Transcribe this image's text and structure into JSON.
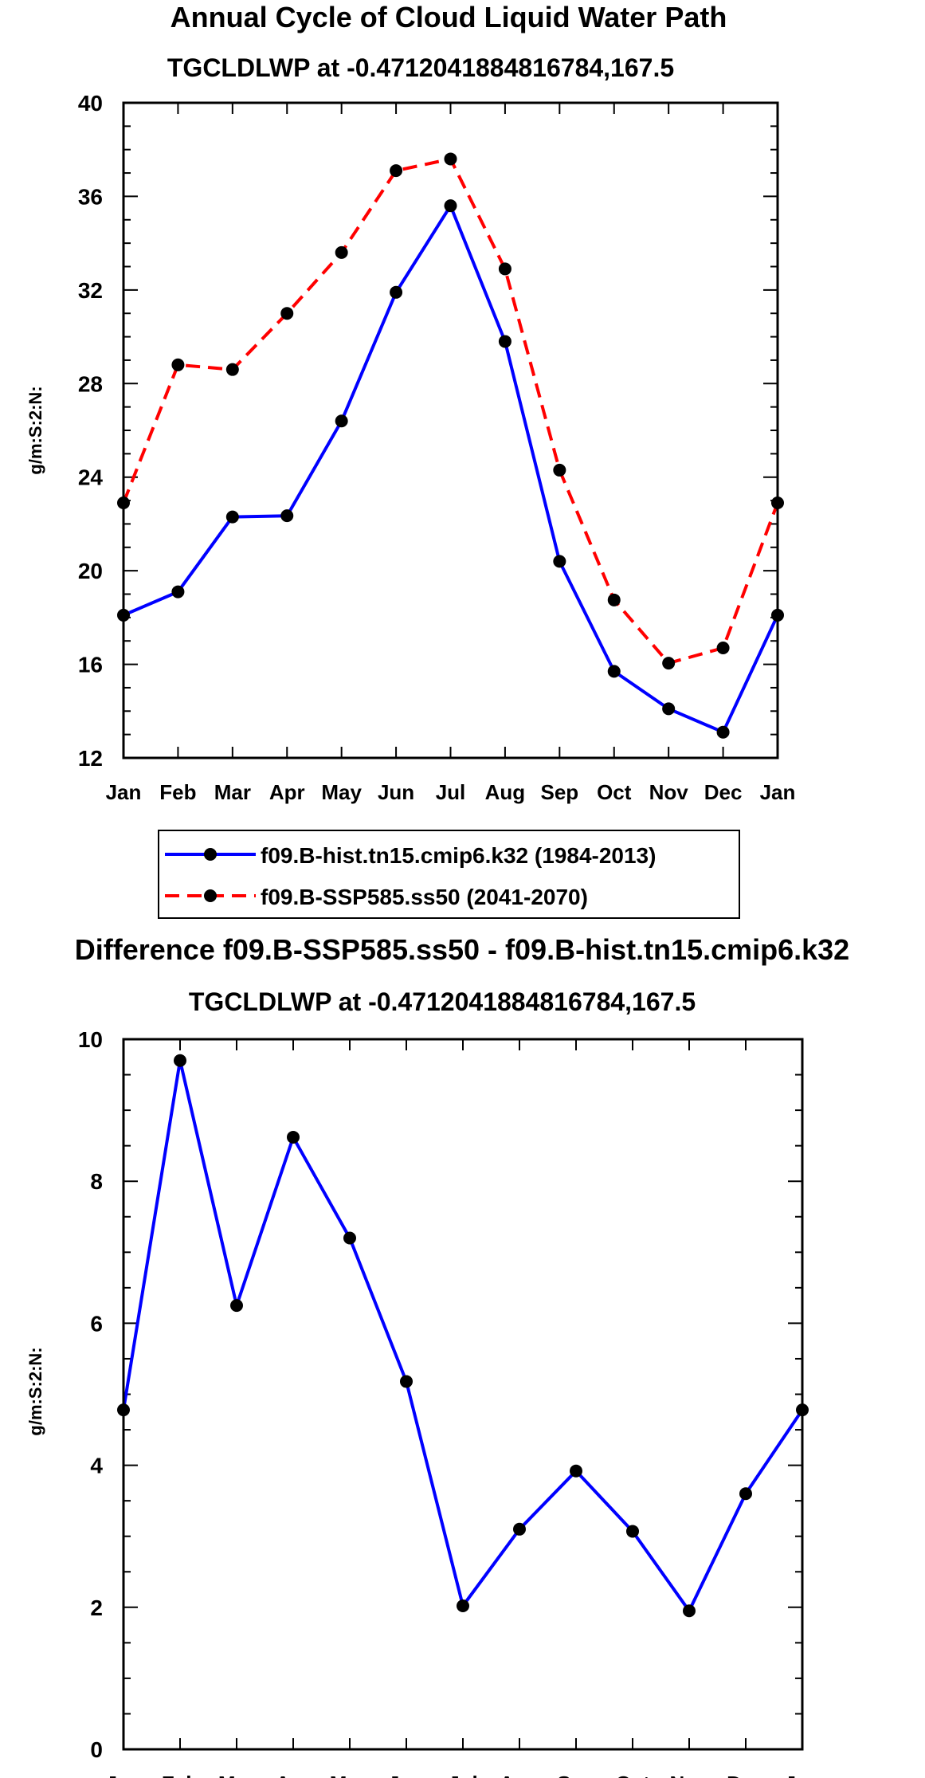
{
  "chart_data": [
    {
      "type": "line",
      "title": "Annual Cycle of Cloud Liquid Water Path",
      "subtitle": "TGCLDLWP at -0.4712041884816784,167.5",
      "xlabel": "",
      "ylabel": "g/m:S:2:N:",
      "categories": [
        "Jan",
        "Feb",
        "Mar",
        "Apr",
        "May",
        "Jun",
        "Jul",
        "Aug",
        "Sep",
        "Oct",
        "Nov",
        "Dec",
        "Jan"
      ],
      "ylim": [
        12,
        40
      ],
      "yticks": [
        12,
        16,
        20,
        24,
        28,
        32,
        36,
        40
      ],
      "ytick_labels": [
        "12",
        "16",
        "20",
        "24",
        "28",
        "32",
        "36",
        "40"
      ],
      "series": [
        {
          "name": "f09.B-hist.tn15.cmip6.k32 (1984-2013)",
          "color": "#0000ff",
          "dash": "solid",
          "values": [
            18.1,
            19.1,
            22.3,
            22.35,
            26.4,
            31.9,
            35.6,
            29.8,
            20.4,
            15.7,
            14.1,
            13.1,
            18.1
          ]
        },
        {
          "name": "f09.B-SSP585.ss50 (2041-2070)",
          "color": "#ff0000",
          "dash": "dashed",
          "values": [
            22.9,
            28.8,
            28.6,
            31.0,
            33.6,
            37.1,
            37.6,
            32.9,
            24.3,
            18.75,
            16.05,
            16.7,
            22.9
          ]
        }
      ],
      "legend": "below"
    },
    {
      "type": "line",
      "title": "Difference f09.B-SSP585.ss50 - f09.B-hist.tn15.cmip6.k32",
      "subtitle": "TGCLDLWP at -0.4712041884816784,167.5",
      "xlabel": "",
      "ylabel": "g/m:S:2:N:",
      "categories": [
        "Jan",
        "Feb",
        "Mar",
        "Apr",
        "May",
        "Jun",
        "Jul",
        "Aug",
        "Sep",
        "Oct",
        "Nov",
        "Dec",
        "Jan"
      ],
      "ylim": [
        0,
        10
      ],
      "yticks": [
        0,
        2,
        4,
        6,
        8,
        10
      ],
      "ytick_labels": [
        "0",
        "2",
        "4",
        "6",
        "8",
        "10"
      ],
      "series": [
        {
          "name": "Difference",
          "color": "#0000ff",
          "dash": "solid",
          "values": [
            4.78,
            9.7,
            6.25,
            8.62,
            7.2,
            5.18,
            2.02,
            3.1,
            3.92,
            3.07,
            1.95,
            3.6,
            4.78
          ]
        }
      ]
    }
  ]
}
